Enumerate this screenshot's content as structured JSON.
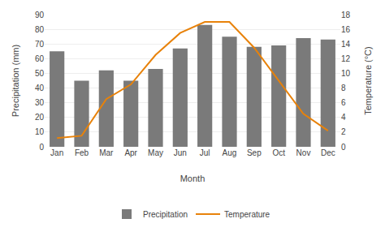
{
  "chart_data": {
    "type": "bar",
    "xlabel": "Month",
    "ylabel": "Precipitation (mm)",
    "y2label": "Temperature (°C)",
    "categories": [
      "Jan",
      "Feb",
      "Mar",
      "Apr",
      "May",
      "Jun",
      "Jul",
      "Aug",
      "Sep",
      "Oct",
      "Nov",
      "Dec"
    ],
    "series": [
      {
        "name": "Precipitation",
        "type": "bar",
        "color": "#7a7a7a",
        "values": [
          65,
          45,
          52,
          45,
          53,
          67,
          83,
          75,
          68,
          69,
          74,
          73
        ]
      },
      {
        "name": "Temperature",
        "type": "line",
        "color": "#E8820A",
        "axis": "y2",
        "values": [
          1.2,
          1.5,
          6.5,
          8.5,
          12.5,
          15.5,
          17.0,
          17.0,
          13.5,
          9.0,
          4.5,
          2.2
        ]
      }
    ],
    "ylim": [
      0,
      90
    ],
    "yticks": [
      0,
      10,
      20,
      30,
      40,
      50,
      60,
      70,
      80,
      90
    ],
    "y2lim": [
      0,
      18
    ],
    "y2ticks": [
      0,
      2,
      4,
      6,
      8,
      10,
      12,
      14,
      16,
      18
    ],
    "grid": true,
    "legend": "bottom"
  }
}
